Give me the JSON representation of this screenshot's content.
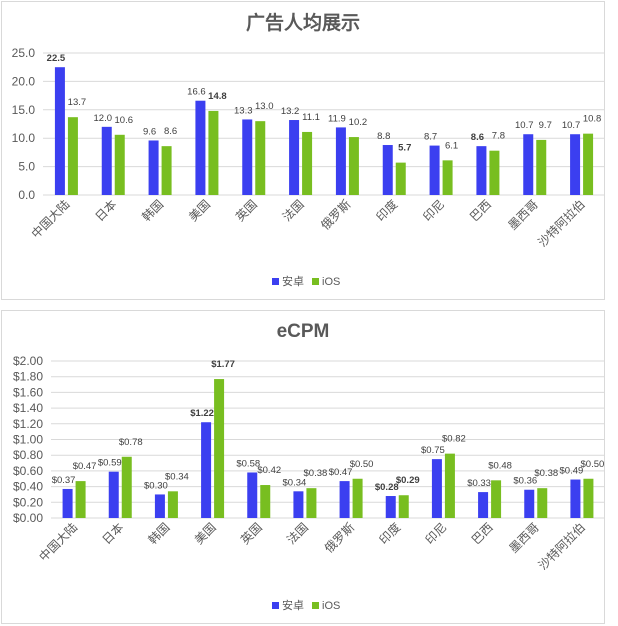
{
  "colors": {
    "android": "#3b3ff0",
    "ios": "#78be20"
  },
  "chart_data": [
    {
      "type": "bar",
      "title": "广告人均展示",
      "categories": [
        "中国大陆",
        "日本",
        "韩国",
        "美国",
        "英国",
        "法国",
        "俄罗斯",
        "印度",
        "印尼",
        "巴西",
        "墨西哥",
        "沙特阿拉伯"
      ],
      "series": [
        {
          "name": "安卓",
          "values": [
            22.5,
            12.0,
            9.6,
            16.6,
            13.3,
            13.2,
            11.9,
            8.8,
            8.7,
            8.6,
            10.7,
            10.7
          ],
          "labels": [
            "22.5",
            "12.0",
            "9.6",
            "16.6",
            "13.3",
            "13.2",
            "11.9",
            "8.8",
            "8.7",
            "8.6",
            "10.7",
            "10.7"
          ]
        },
        {
          "name": "iOS",
          "values": [
            13.7,
            10.6,
            8.6,
            14.8,
            13.0,
            11.1,
            10.2,
            5.7,
            6.1,
            7.8,
            9.7,
            10.8
          ],
          "labels": [
            "13.7",
            "10.6",
            "8.6",
            "14.8",
            "13.0",
            "11.1",
            "10.2",
            "5.7",
            "6.1",
            "7.8",
            "9.7",
            "10.8"
          ]
        }
      ],
      "yticks": [
        "0.0",
        "5.0",
        "10.0",
        "15.0",
        "20.0",
        "25.0"
      ],
      "ylim": [
        0,
        25
      ],
      "grid": true,
      "legend": "bottom"
    },
    {
      "type": "bar",
      "title": "eCPM",
      "categories": [
        "中国大陆",
        "日本",
        "韩国",
        "美国",
        "英国",
        "法国",
        "俄罗斯",
        "印度",
        "印尼",
        "巴西",
        "墨西哥",
        "沙特阿拉伯"
      ],
      "series": [
        {
          "name": "安卓",
          "values": [
            0.37,
            0.59,
            0.3,
            1.22,
            0.58,
            0.34,
            0.47,
            0.28,
            0.75,
            0.33,
            0.36,
            0.49
          ],
          "labels": [
            "$0.37",
            "$0.59",
            "$0.30",
            "$1.22",
            "$0.58",
            "$0.34",
            "$0.47",
            "$0.28",
            "$0.75",
            "$0.33",
            "$0.36",
            "$0.49"
          ]
        },
        {
          "name": "iOS",
          "values": [
            0.47,
            0.78,
            0.34,
            1.77,
            0.42,
            0.38,
            0.5,
            0.29,
            0.82,
            0.48,
            0.38,
            0.5
          ],
          "labels": [
            "$0.47",
            "$0.78",
            "$0.34",
            "$1.77",
            "$0.42",
            "$0.38",
            "$0.50",
            "$0.29",
            "$0.82",
            "$0.48",
            "$0.38",
            "$0.50"
          ]
        }
      ],
      "yticks": [
        "$0.00",
        "$0.20",
        "$0.40",
        "$0.60",
        "$0.80",
        "$1.00",
        "$1.20",
        "$1.40",
        "$1.60",
        "$1.80",
        "$2.00"
      ],
      "ylim": [
        0,
        2
      ],
      "grid": true,
      "legend": "bottom"
    }
  ]
}
